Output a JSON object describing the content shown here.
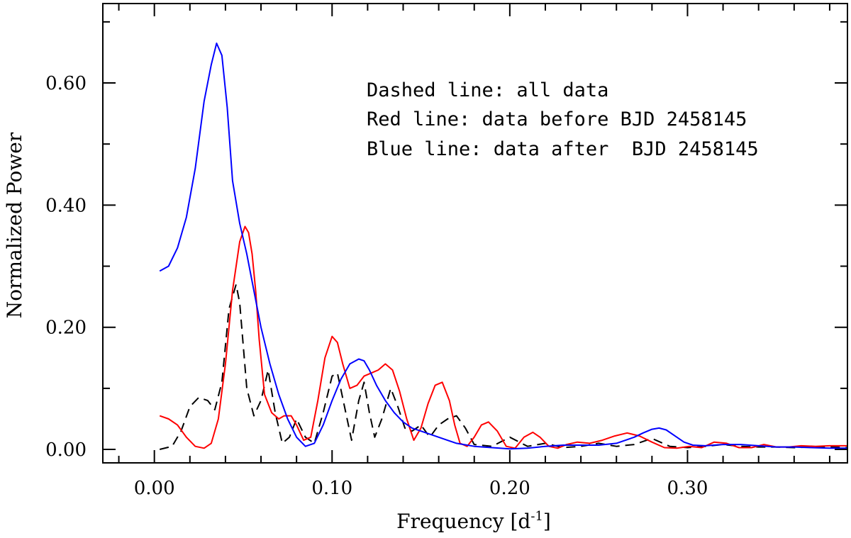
{
  "chart_data": {
    "type": "line",
    "title": "",
    "xlabel": "Frequency [d",
    "xlabel_sup": "-1",
    "xlabel_close": "]",
    "ylabel": "Normalized Power",
    "xlim": [
      -0.029,
      0.39
    ],
    "ylim": [
      -0.022,
      0.73
    ],
    "xticks": [
      0.0,
      0.1,
      0.2,
      0.3
    ],
    "xtick_labels": [
      "0.00",
      "0.10",
      "0.20",
      "0.30"
    ],
    "yticks": [
      0.0,
      0.2,
      0.4,
      0.6
    ],
    "ytick_labels": [
      "0.00",
      "0.20",
      "0.40",
      "0.60"
    ],
    "grid": false,
    "annotations": [
      "Dashed line: all data",
      "Red line: data before BJD 2458145",
      "Blue line: data after  BJD 2458145"
    ],
    "series": [
      {
        "style": "dashed",
        "color": "#000000",
        "x": [
          0.003,
          0.01,
          0.015,
          0.02,
          0.025,
          0.03,
          0.034,
          0.038,
          0.042,
          0.046,
          0.048,
          0.052,
          0.056,
          0.06,
          0.064,
          0.068,
          0.072,
          0.076,
          0.08,
          0.085,
          0.09,
          0.095,
          0.1,
          0.103,
          0.107,
          0.111,
          0.115,
          0.118,
          0.121,
          0.124,
          0.128,
          0.133,
          0.137,
          0.141,
          0.145,
          0.15,
          0.155,
          0.16,
          0.165,
          0.17,
          0.175,
          0.18,
          0.19,
          0.2,
          0.21,
          0.22,
          0.23,
          0.24,
          0.25,
          0.26,
          0.27,
          0.28,
          0.29,
          0.3,
          0.31,
          0.32,
          0.33,
          0.34,
          0.35,
          0.36,
          0.37,
          0.38,
          0.39
        ],
        "y": [
          0.0,
          0.005,
          0.03,
          0.07,
          0.085,
          0.08,
          0.065,
          0.11,
          0.23,
          0.27,
          0.24,
          0.1,
          0.055,
          0.08,
          0.13,
          0.06,
          0.01,
          0.02,
          0.05,
          0.02,
          0.01,
          0.06,
          0.12,
          0.125,
          0.07,
          0.015,
          0.08,
          0.11,
          0.06,
          0.02,
          0.05,
          0.1,
          0.07,
          0.035,
          0.03,
          0.04,
          0.02,
          0.04,
          0.05,
          0.055,
          0.035,
          0.008,
          0.005,
          0.02,
          0.005,
          0.01,
          0.003,
          0.005,
          0.01,
          0.005,
          0.008,
          0.018,
          0.005,
          0.003,
          0.005,
          0.008,
          0.005,
          0.004,
          0.004,
          0.003,
          0.004,
          0.004,
          0.003
        ]
      },
      {
        "style": "solid",
        "color": "#ff0000",
        "x": [
          0.003,
          0.008,
          0.013,
          0.018,
          0.023,
          0.028,
          0.032,
          0.036,
          0.04,
          0.044,
          0.048,
          0.051,
          0.053,
          0.055,
          0.057,
          0.059,
          0.062,
          0.066,
          0.07,
          0.073,
          0.077,
          0.08,
          0.084,
          0.088,
          0.092,
          0.096,
          0.1,
          0.103,
          0.106,
          0.11,
          0.114,
          0.118,
          0.122,
          0.126,
          0.13,
          0.134,
          0.138,
          0.142,
          0.146,
          0.15,
          0.154,
          0.158,
          0.162,
          0.166,
          0.169,
          0.172,
          0.176,
          0.18,
          0.184,
          0.188,
          0.193,
          0.198,
          0.203,
          0.208,
          0.213,
          0.217,
          0.222,
          0.227,
          0.232,
          0.238,
          0.245,
          0.252,
          0.259,
          0.266,
          0.273,
          0.28,
          0.287,
          0.294,
          0.301,
          0.308,
          0.315,
          0.322,
          0.329,
          0.336,
          0.343,
          0.35,
          0.357,
          0.364,
          0.372,
          0.38,
          0.39
        ],
        "y": [
          0.055,
          0.05,
          0.04,
          0.02,
          0.005,
          0.002,
          0.01,
          0.05,
          0.14,
          0.26,
          0.34,
          0.365,
          0.355,
          0.32,
          0.26,
          0.18,
          0.09,
          0.06,
          0.05,
          0.055,
          0.055,
          0.04,
          0.015,
          0.02,
          0.08,
          0.15,
          0.185,
          0.175,
          0.14,
          0.1,
          0.105,
          0.12,
          0.125,
          0.13,
          0.14,
          0.13,
          0.095,
          0.05,
          0.015,
          0.035,
          0.075,
          0.105,
          0.11,
          0.08,
          0.04,
          0.01,
          0.005,
          0.02,
          0.04,
          0.045,
          0.03,
          0.005,
          0.002,
          0.02,
          0.028,
          0.02,
          0.005,
          0.002,
          0.008,
          0.012,
          0.01,
          0.015,
          0.022,
          0.027,
          0.022,
          0.012,
          0.003,
          0.002,
          0.005,
          0.003,
          0.012,
          0.01,
          0.003,
          0.003,
          0.008,
          0.004,
          0.004,
          0.006,
          0.005,
          0.006,
          0.006
        ]
      },
      {
        "style": "solid",
        "color": "#0000ff",
        "x": [
          0.003,
          0.008,
          0.013,
          0.018,
          0.023,
          0.028,
          0.032,
          0.035,
          0.038,
          0.041,
          0.044,
          0.048,
          0.052,
          0.056,
          0.06,
          0.065,
          0.07,
          0.075,
          0.08,
          0.085,
          0.09,
          0.095,
          0.1,
          0.105,
          0.11,
          0.115,
          0.118,
          0.121,
          0.125,
          0.13,
          0.135,
          0.14,
          0.145,
          0.15,
          0.16,
          0.17,
          0.18,
          0.19,
          0.2,
          0.21,
          0.22,
          0.23,
          0.24,
          0.25,
          0.26,
          0.27,
          0.275,
          0.28,
          0.284,
          0.288,
          0.293,
          0.298,
          0.303,
          0.31,
          0.32,
          0.33,
          0.34,
          0.35,
          0.36,
          0.37,
          0.38,
          0.39
        ],
        "y": [
          0.292,
          0.3,
          0.33,
          0.38,
          0.46,
          0.57,
          0.63,
          0.665,
          0.645,
          0.56,
          0.44,
          0.37,
          0.32,
          0.26,
          0.2,
          0.14,
          0.09,
          0.05,
          0.02,
          0.005,
          0.01,
          0.04,
          0.08,
          0.115,
          0.14,
          0.148,
          0.145,
          0.13,
          0.105,
          0.08,
          0.06,
          0.045,
          0.035,
          0.03,
          0.02,
          0.01,
          0.005,
          0.003,
          0.001,
          0.002,
          0.005,
          0.007,
          0.007,
          0.007,
          0.01,
          0.02,
          0.027,
          0.033,
          0.035,
          0.032,
          0.022,
          0.012,
          0.007,
          0.006,
          0.008,
          0.008,
          0.006,
          0.004,
          0.004,
          0.003,
          0.002,
          0.002
        ]
      }
    ]
  }
}
